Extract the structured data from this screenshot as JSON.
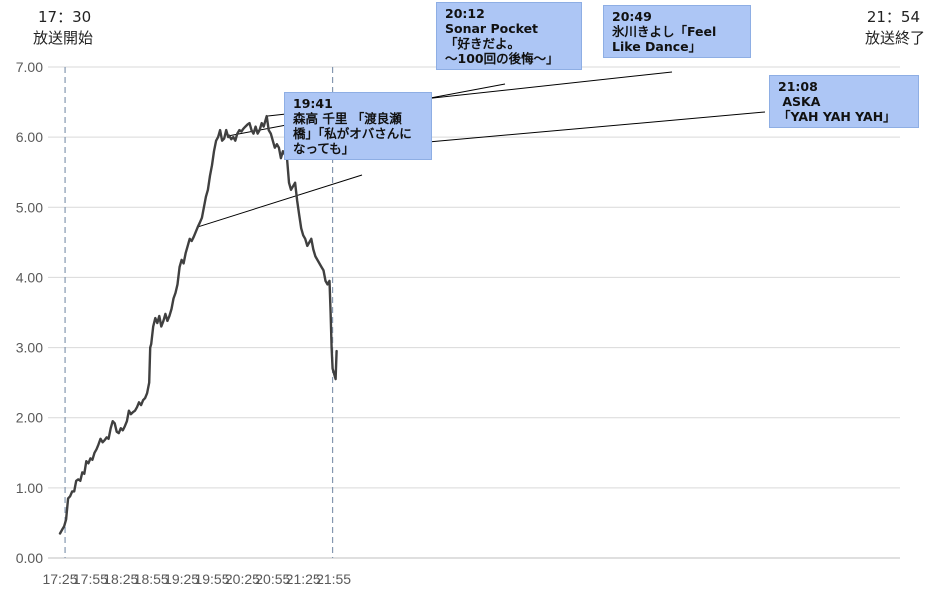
{
  "chart_data": {
    "type": "line",
    "x_unit": "time (HH:MM)",
    "ylim": [
      0,
      7
    ],
    "yticks": [
      "0.00",
      "1.00",
      "2.00",
      "3.00",
      "4.00",
      "5.00",
      "6.00",
      "7.00"
    ],
    "xticks": [
      "17:25",
      "17:55",
      "18:25",
      "18:55",
      "19:25",
      "19:55",
      "20:25",
      "20:55",
      "21:25",
      "21:55"
    ],
    "grid": "horizontal",
    "markers": [
      {
        "time": "17:30",
        "label_time": "17：30",
        "label_text": "放送開始"
      },
      {
        "time": "21:54",
        "label_time": "21：54",
        "label_text": "放送終了"
      }
    ],
    "annotations": [
      {
        "time": "19:41",
        "lines": [
          "19:41",
          "森高 千里 「渡良瀬",
          "橋」「私がオバさんに",
          "なっても」"
        ]
      },
      {
        "time": "20:12",
        "lines": [
          "20:12",
          "Sonar Pocket",
          "「好きだよ。",
          "～100回の後悔～」"
        ]
      },
      {
        "time": "20:49",
        "lines": [
          "20:49",
          "氷川きよし「Feel",
          "Like Dance」"
        ]
      },
      {
        "time": "21:08",
        "lines": [
          "21:08",
          " ASKA",
          "「YAH YAH YAH」"
        ]
      }
    ],
    "series": [
      {
        "color": "#404040",
        "points": [
          [
            "17:25",
            0.35
          ],
          [
            "17:27",
            0.4
          ],
          [
            "17:29",
            0.45
          ],
          [
            "17:31",
            0.55
          ],
          [
            "17:32",
            0.7
          ],
          [
            "17:33",
            0.85
          ],
          [
            "17:35",
            0.88
          ],
          [
            "17:37",
            0.95
          ],
          [
            "17:39",
            0.95
          ],
          [
            "17:41",
            1.1
          ],
          [
            "17:43",
            1.12
          ],
          [
            "17:45",
            1.1
          ],
          [
            "17:47",
            1.22
          ],
          [
            "17:49",
            1.2
          ],
          [
            "17:51",
            1.38
          ],
          [
            "17:53",
            1.35
          ],
          [
            "17:55",
            1.42
          ],
          [
            "17:57",
            1.4
          ],
          [
            "17:59",
            1.5
          ],
          [
            "18:01",
            1.55
          ],
          [
            "18:03",
            1.62
          ],
          [
            "18:05",
            1.7
          ],
          [
            "18:07",
            1.65
          ],
          [
            "18:09",
            1.68
          ],
          [
            "18:11",
            1.72
          ],
          [
            "18:13",
            1.7
          ],
          [
            "18:15",
            1.85
          ],
          [
            "18:17",
            1.95
          ],
          [
            "18:19",
            1.92
          ],
          [
            "18:21",
            1.8
          ],
          [
            "18:23",
            1.78
          ],
          [
            "18:25",
            1.85
          ],
          [
            "18:27",
            1.82
          ],
          [
            "18:29",
            1.88
          ],
          [
            "18:31",
            1.95
          ],
          [
            "18:33",
            2.1
          ],
          [
            "18:35",
            2.05
          ],
          [
            "18:37",
            2.08
          ],
          [
            "18:39",
            2.1
          ],
          [
            "18:41",
            2.15
          ],
          [
            "18:43",
            2.22
          ],
          [
            "18:45",
            2.18
          ],
          [
            "18:47",
            2.25
          ],
          [
            "18:49",
            2.28
          ],
          [
            "18:51",
            2.35
          ],
          [
            "18:53",
            2.5
          ],
          [
            "18:54",
            3.0
          ],
          [
            "18:55",
            3.05
          ],
          [
            "18:57",
            3.3
          ],
          [
            "18:59",
            3.42
          ],
          [
            "19:01",
            3.35
          ],
          [
            "19:03",
            3.45
          ],
          [
            "19:05",
            3.3
          ],
          [
            "19:07",
            3.38
          ],
          [
            "19:09",
            3.48
          ],
          [
            "19:11",
            3.38
          ],
          [
            "19:13",
            3.45
          ],
          [
            "19:15",
            3.55
          ],
          [
            "19:17",
            3.7
          ],
          [
            "19:19",
            3.78
          ],
          [
            "19:21",
            3.9
          ],
          [
            "19:23",
            4.15
          ],
          [
            "19:25",
            4.25
          ],
          [
            "19:27",
            4.2
          ],
          [
            "19:29",
            4.35
          ],
          [
            "19:31",
            4.45
          ],
          [
            "19:33",
            4.55
          ],
          [
            "19:35",
            4.52
          ],
          [
            "19:37",
            4.58
          ],
          [
            "19:39",
            4.65
          ],
          [
            "19:41",
            4.72
          ],
          [
            "19:43",
            4.78
          ],
          [
            "19:45",
            4.85
          ],
          [
            "19:47",
            5.0
          ],
          [
            "19:49",
            5.15
          ],
          [
            "19:51",
            5.25
          ],
          [
            "19:53",
            5.45
          ],
          [
            "19:55",
            5.6
          ],
          [
            "19:57",
            5.8
          ],
          [
            "19:59",
            5.95
          ],
          [
            "20:01",
            6.0
          ],
          [
            "20:03",
            6.1
          ],
          [
            "20:05",
            5.95
          ],
          [
            "20:07",
            5.98
          ],
          [
            "20:09",
            6.1
          ],
          [
            "20:11",
            6.0
          ],
          [
            "20:12",
            6.02
          ],
          [
            "20:14",
            5.97
          ],
          [
            "20:16",
            6.0
          ],
          [
            "20:18",
            5.95
          ],
          [
            "20:20",
            6.05
          ],
          [
            "20:22",
            6.1
          ],
          [
            "20:24",
            6.08
          ],
          [
            "20:26",
            6.12
          ],
          [
            "20:28",
            6.15
          ],
          [
            "20:30",
            6.18
          ],
          [
            "20:32",
            6.2
          ],
          [
            "20:34",
            6.1
          ],
          [
            "20:36",
            6.05
          ],
          [
            "20:38",
            6.15
          ],
          [
            "20:40",
            6.05
          ],
          [
            "20:42",
            6.1
          ],
          [
            "20:44",
            6.2
          ],
          [
            "20:46",
            6.15
          ],
          [
            "20:48",
            6.25
          ],
          [
            "20:49",
            6.3
          ],
          [
            "20:51",
            6.1
          ],
          [
            "20:53",
            6.05
          ],
          [
            "20:55",
            5.95
          ],
          [
            "20:57",
            5.85
          ],
          [
            "20:59",
            5.9
          ],
          [
            "21:01",
            5.85
          ],
          [
            "21:03",
            5.7
          ],
          [
            "21:05",
            5.8
          ],
          [
            "21:07",
            5.75
          ],
          [
            "21:09",
            5.7
          ],
          [
            "21:11",
            5.35
          ],
          [
            "21:13",
            5.25
          ],
          [
            "21:15",
            5.3
          ],
          [
            "21:17",
            5.35
          ],
          [
            "21:19",
            5.1
          ],
          [
            "21:21",
            4.9
          ],
          [
            "21:23",
            4.7
          ],
          [
            "21:25",
            4.6
          ],
          [
            "21:27",
            4.55
          ],
          [
            "21:29",
            4.45
          ],
          [
            "21:31",
            4.5
          ],
          [
            "21:33",
            4.55
          ],
          [
            "21:35",
            4.4
          ],
          [
            "21:37",
            4.3
          ],
          [
            "21:39",
            4.25
          ],
          [
            "21:41",
            4.2
          ],
          [
            "21:43",
            4.15
          ],
          [
            "21:45",
            4.1
          ],
          [
            "21:47",
            3.95
          ],
          [
            "21:49",
            3.9
          ],
          [
            "21:51",
            3.95
          ],
          [
            "21:52",
            3.5
          ],
          [
            "21:53",
            3.0
          ],
          [
            "21:54",
            2.7
          ],
          [
            "21:55",
            2.65
          ],
          [
            "21:56",
            2.6
          ],
          [
            "21:57",
            2.55
          ],
          [
            "21:58",
            2.95
          ]
        ]
      }
    ]
  }
}
